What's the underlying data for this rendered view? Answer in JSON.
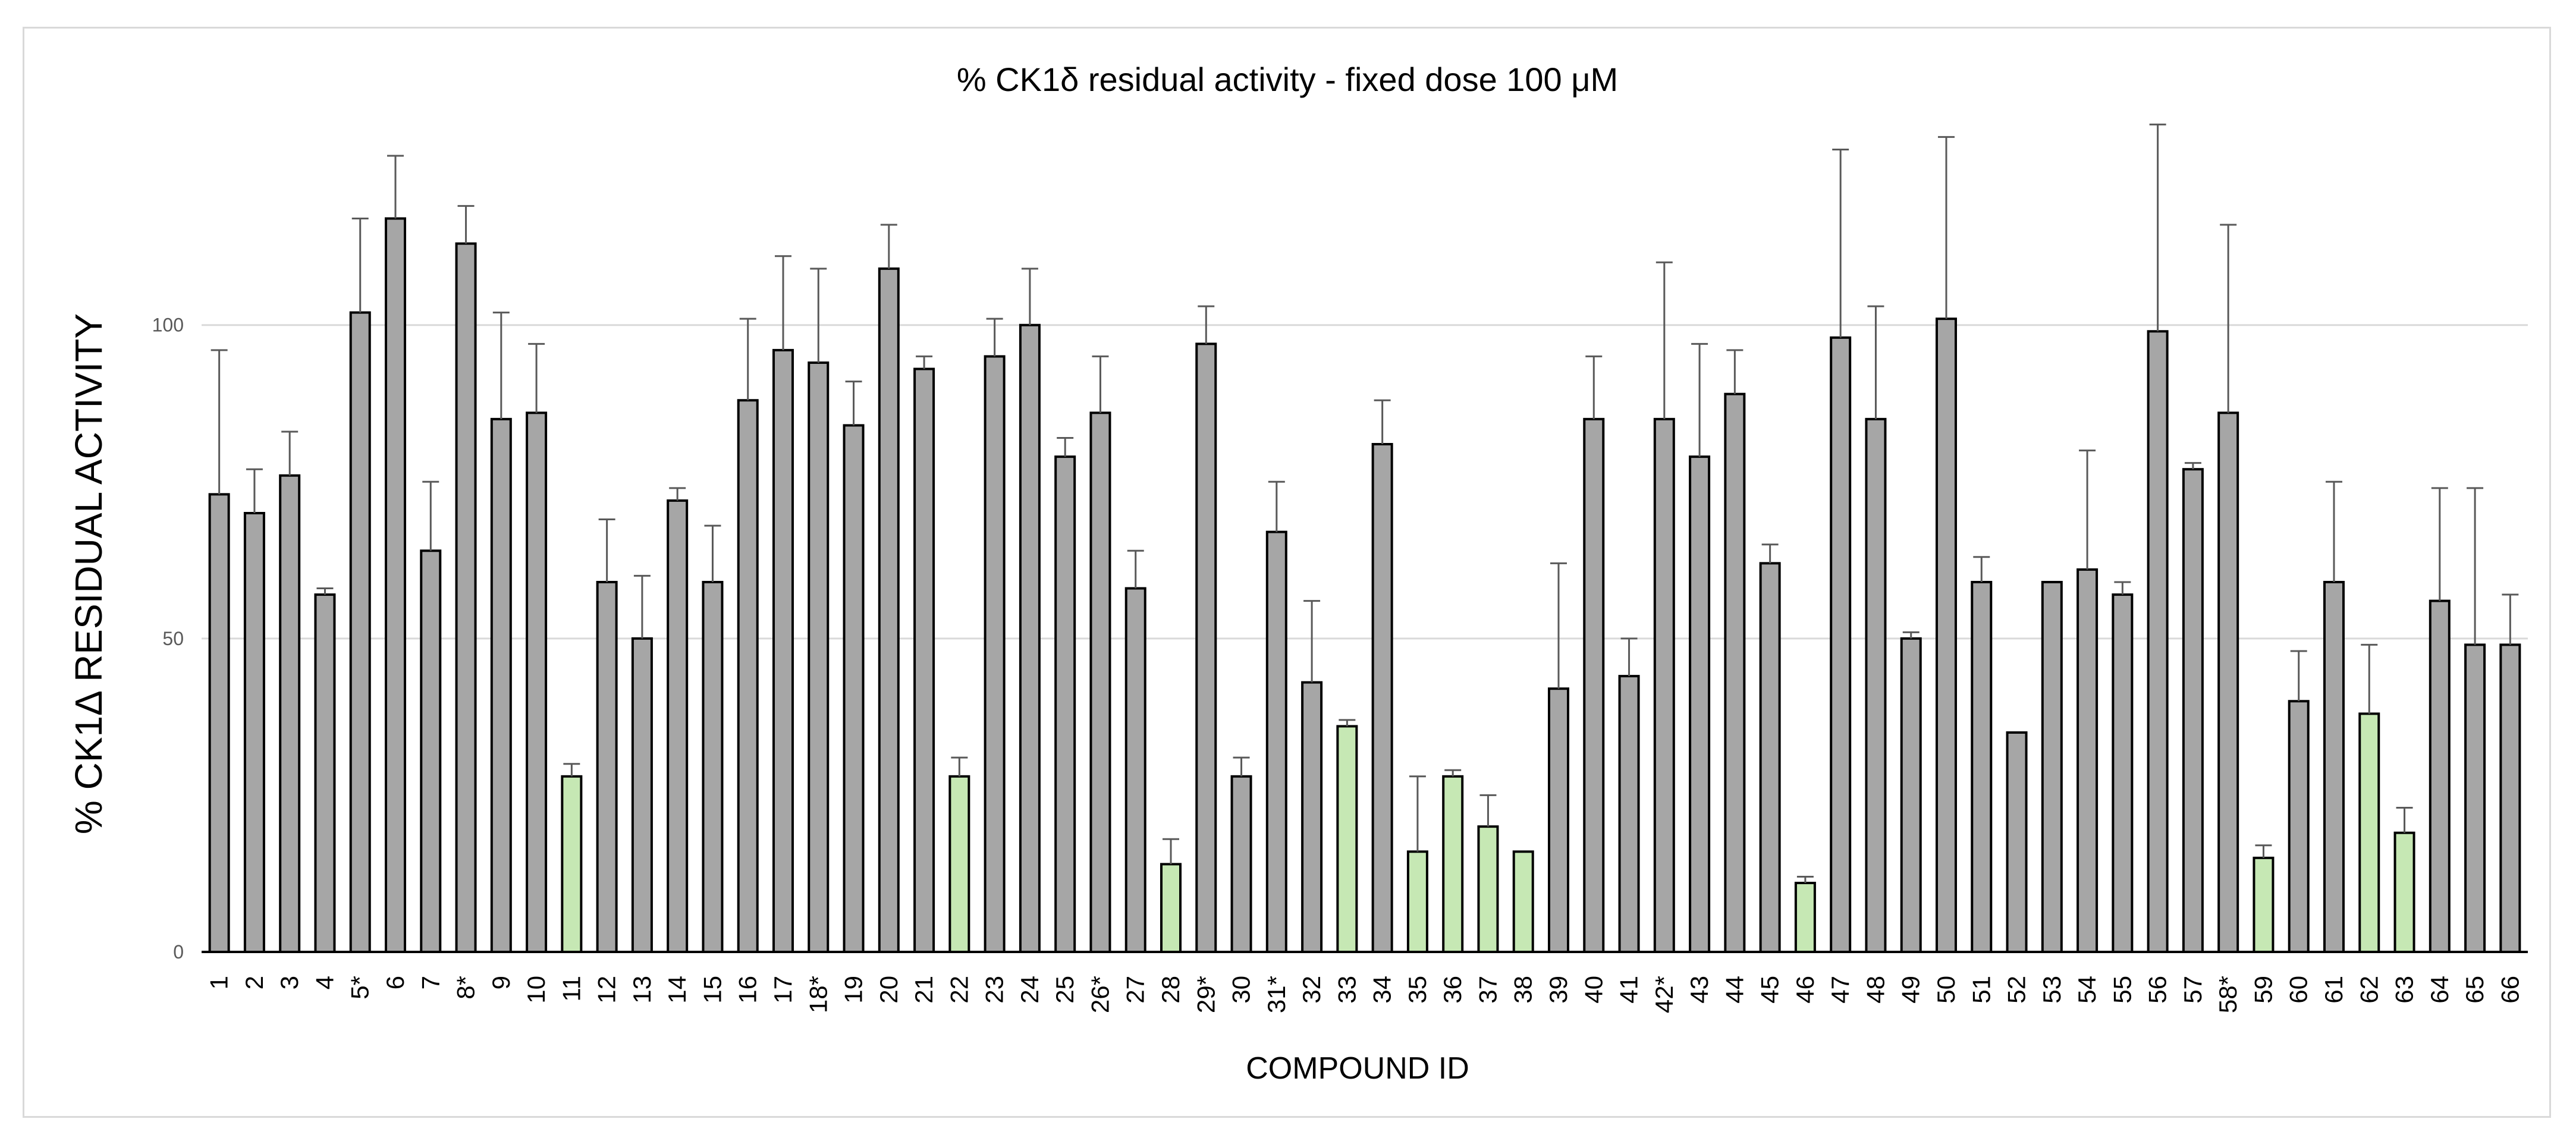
{
  "chart_data": {
    "type": "bar",
    "title": "% CK1δ residual activity - fixed dose 100 μM",
    "xlabel": "COMPOUND ID",
    "ylabel": "% CK1Δ RESIDUAL ACTIVITY",
    "ylim": [
      0,
      140
    ],
    "yticks": [
      0,
      50,
      100
    ],
    "ytick_labels": [
      "0",
      "50",
      "100"
    ],
    "grid": true,
    "colors": {
      "default": "#a6a6a6",
      "highlight": "#c6e8b4",
      "edge": "#000000",
      "grid": "#d9d9d9",
      "error": "#595959"
    },
    "categories": [
      "1",
      "2",
      "3",
      "4",
      "5*",
      "6",
      "7",
      "8*",
      "9",
      "10",
      "11",
      "12",
      "13",
      "14",
      "15",
      "16",
      "17",
      "18*",
      "19",
      "20",
      "21",
      "22",
      "23",
      "24",
      "25",
      "26*",
      "27",
      "28",
      "29*",
      "30",
      "31*",
      "32",
      "33",
      "34",
      "35",
      "36",
      "37",
      "38",
      "39",
      "40",
      "41",
      "42*",
      "43",
      "44",
      "45",
      "46",
      "47",
      "48",
      "49",
      "50",
      "51",
      "52",
      "53",
      "54",
      "55",
      "56",
      "57",
      "58*",
      "59",
      "60",
      "61",
      "62",
      "63",
      "64",
      "65",
      "66"
    ],
    "values": [
      73,
      70,
      76,
      57,
      102,
      117,
      64,
      113,
      85,
      86,
      28,
      59,
      50,
      72,
      59,
      88,
      96,
      94,
      84,
      109,
      93,
      28,
      95,
      100,
      79,
      86,
      58,
      14,
      97,
      28,
      67,
      43,
      36,
      81,
      16,
      28,
      20,
      16,
      42,
      85,
      44,
      85,
      79,
      89,
      62,
      11,
      98,
      85,
      50,
      101,
      59,
      35,
      59,
      61,
      57,
      99,
      77,
      86,
      15,
      40,
      59,
      38,
      19,
      56,
      49,
      49
    ],
    "errors": [
      23,
      7,
      7,
      1,
      15,
      10,
      11,
      6,
      17,
      11,
      2,
      10,
      10,
      2,
      9,
      13,
      15,
      15,
      7,
      7,
      2,
      3,
      6,
      9,
      3,
      9,
      6,
      4,
      6,
      3,
      8,
      13,
      1,
      7,
      12,
      1,
      5,
      0,
      20,
      10,
      6,
      25,
      18,
      7,
      3,
      1,
      30,
      18,
      1,
      29,
      4,
      0,
      0,
      19,
      2,
      33,
      1,
      30,
      2,
      8,
      16,
      11,
      4,
      18,
      25,
      8
    ],
    "highlighted": [
      "11",
      "22",
      "28",
      "33",
      "35",
      "36",
      "37",
      "38",
      "46",
      "59",
      "62",
      "63"
    ]
  }
}
